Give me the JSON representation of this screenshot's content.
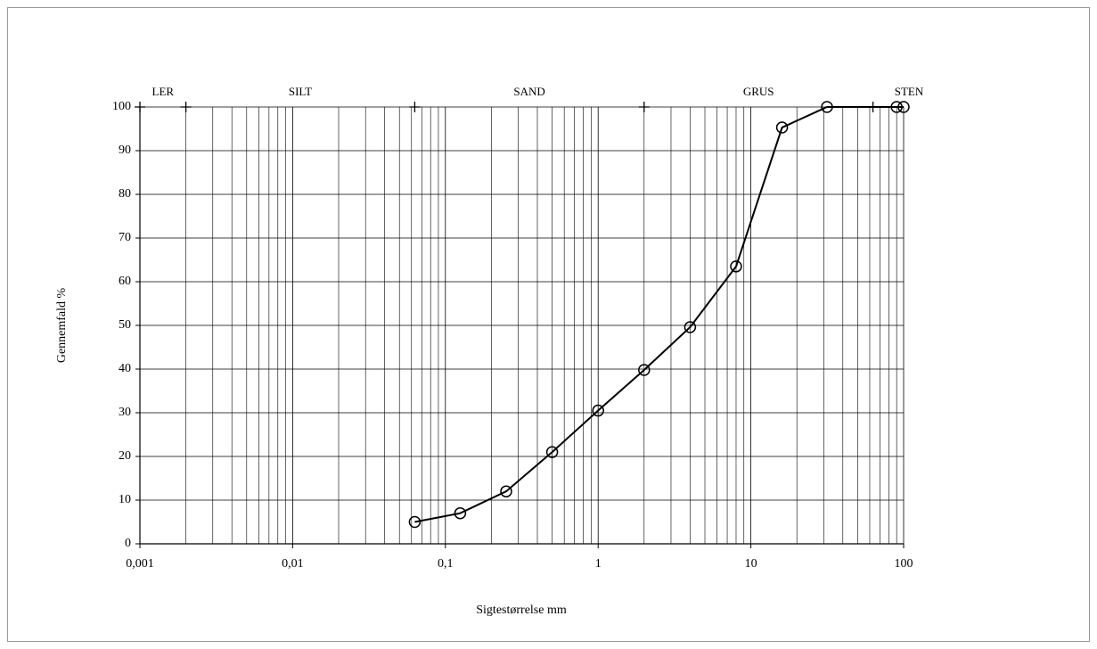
{
  "chart_data": {
    "type": "line",
    "x_label": "Sigtestørrelse mm",
    "y_label": "Gennemfald %",
    "x_log": true,
    "grid": true,
    "x": [
      0.063,
      0.125,
      0.25,
      0.5,
      1,
      2,
      4,
      8,
      16,
      31.5,
      90,
      100
    ],
    "series": [
      {
        "color": "#000000",
        "values": [
          5,
          7,
          12,
          21,
          30.5,
          39.8,
          49.6,
          63.5,
          95.3,
          100,
          100,
          100
        ]
      }
    ],
    "xlim": [
      0.001,
      100
    ],
    "xticks": [
      {
        "value": 0.001,
        "label": "0,001"
      },
      {
        "value": 0.01,
        "label": "0,01"
      },
      {
        "value": 0.1,
        "label": "0,1"
      },
      1,
      10,
      100
    ],
    "ylim": [
      0,
      100
    ],
    "yticks": [
      0,
      10,
      20,
      30,
      40,
      50,
      60,
      70,
      80,
      90,
      100
    ],
    "zones": [
      "LER",
      "SILT",
      "SAND",
      "GRUS",
      "STEN"
    ],
    "zone_boundaries": [
      0.001,
      0.002,
      0.063,
      2,
      63
    ]
  }
}
